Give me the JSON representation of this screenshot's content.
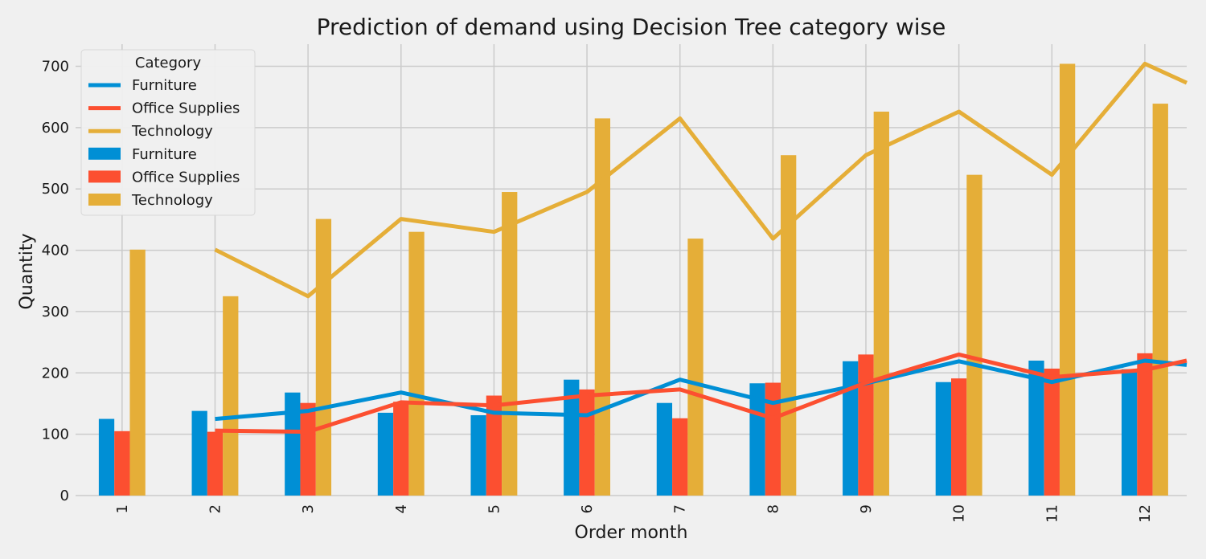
{
  "chart_data": {
    "type": "bar",
    "title": "Prediction of demand using Decision Tree category wise",
    "xlabel": "Order month",
    "ylabel": "Quantity",
    "ylim": [
      0,
      736
    ],
    "yticks": [
      0,
      100,
      200,
      300,
      400,
      500,
      600,
      700
    ],
    "categories": [
      "1",
      "2",
      "3",
      "4",
      "5",
      "6",
      "7",
      "8",
      "9",
      "10",
      "11",
      "12"
    ],
    "grid": true,
    "legend": {
      "title": "Category",
      "placement": "top-left",
      "entries": [
        {
          "label": "Furniture",
          "kind": "line",
          "color": "#008fd5"
        },
        {
          "label": "Office Supplies",
          "kind": "line",
          "color": "#fc4f30"
        },
        {
          "label": "Technology",
          "kind": "line",
          "color": "#e5ae38"
        },
        {
          "label": "Furniture",
          "kind": "bar",
          "color": "#008fd5"
        },
        {
          "label": "Office Supplies",
          "kind": "bar",
          "color": "#fc4f30"
        },
        {
          "label": "Technology",
          "kind": "bar",
          "color": "#e5ae38"
        }
      ]
    },
    "bar_series": [
      {
        "name": "Furniture",
        "color": "#008fd5",
        "values": [
          125,
          138,
          168,
          135,
          131,
          189,
          151,
          183,
          219,
          185,
          220,
          206
        ]
      },
      {
        "name": "Office Supplies",
        "color": "#fc4f30",
        "values": [
          105,
          104,
          151,
          153,
          163,
          173,
          126,
          184,
          230,
          191,
          207,
          232
        ]
      },
      {
        "name": "Technology",
        "color": "#e5ae38",
        "values": [
          401,
          325,
          451,
          430,
          495,
          615,
          419,
          555,
          626,
          523,
          704,
          639
        ]
      }
    ],
    "line_series": [
      {
        "name": "Furniture",
        "color": "#008fd5",
        "x": [
          2,
          3,
          4,
          5,
          6,
          7,
          8,
          9,
          10,
          11,
          12,
          12.45
        ],
        "values": [
          125,
          138,
          168,
          135,
          131,
          189,
          151,
          183,
          219,
          185,
          220,
          213
        ]
      },
      {
        "name": "Office Supplies",
        "color": "#fc4f30",
        "x": [
          2,
          3,
          4,
          5,
          6,
          7,
          8,
          9,
          10,
          11,
          12,
          12.45
        ],
        "values": [
          106,
          104,
          152,
          147,
          163,
          173,
          126,
          184,
          230,
          193,
          205,
          220
        ]
      },
      {
        "name": "Technology",
        "color": "#e5ae38",
        "x": [
          2,
          3,
          4,
          5,
          6,
          7,
          8,
          9,
          10,
          11,
          12,
          12.45
        ],
        "values": [
          401,
          325,
          451,
          430,
          495,
          615,
          419,
          555,
          626,
          523,
          704,
          673
        ]
      }
    ]
  }
}
